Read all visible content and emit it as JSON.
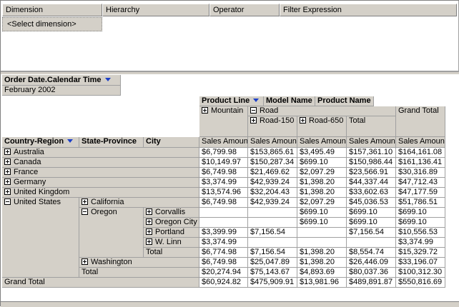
{
  "filter_pane": {
    "columns": [
      "Dimension",
      "Hierarchy",
      "Operator",
      "Filter Expression"
    ],
    "placeholder": "<Select dimension>"
  },
  "pivot": {
    "filter_field": "Order Date.Calendar Time",
    "filter_value": "February 2002",
    "column_fields": [
      "Product Line",
      "Model Name",
      "Product Name"
    ],
    "row_fields": [
      "Country-Region",
      "State-Province",
      "City"
    ],
    "column_headers": {
      "lines": [
        {
          "name": "Mountain"
        },
        {
          "name": "Road",
          "models": [
            "Road-150",
            "Road-650"
          ],
          "total": "Total"
        }
      ],
      "grand_total": "Grand Total"
    },
    "measure": "Sales Amount",
    "rows": [
      {
        "name": "Australia",
        "values": [
          "$6,799.98",
          "$153,865.61",
          "$3,495.49",
          "$157,361.10",
          "$164,161.08"
        ]
      },
      {
        "name": "Canada",
        "values": [
          "$10,149.97",
          "$150,287.34",
          "$699.10",
          "$150,986.44",
          "$161,136.41"
        ]
      },
      {
        "name": "France",
        "values": [
          "$6,749.98",
          "$21,469.62",
          "$2,097.29",
          "$23,566.91",
          "$30,316.89"
        ]
      },
      {
        "name": "Germany",
        "values": [
          "$3,374.99",
          "$42,939.24",
          "$1,398.20",
          "$44,337.44",
          "$47,712.43"
        ]
      },
      {
        "name": "United Kingdom",
        "values": [
          "$13,574.96",
          "$32,204.43",
          "$1,398.20",
          "$33,602.63",
          "$47,177.59"
        ]
      },
      {
        "name": "United States",
        "states": [
          {
            "name": "California",
            "values": [
              "$6,749.98",
              "$42,939.24",
              "$2,097.29",
              "$45,036.53",
              "$51,786.51"
            ]
          },
          {
            "name": "Oregon",
            "cities": [
              {
                "name": "Corvallis",
                "values": [
                  null,
                  null,
                  "$699.10",
                  "$699.10",
                  "$699.10"
                ]
              },
              {
                "name": "Oregon City",
                "values": [
                  null,
                  null,
                  "$699.10",
                  "$699.10",
                  "$699.10"
                ]
              },
              {
                "name": "Portland",
                "values": [
                  "$3,399.99",
                  "$7,156.54",
                  null,
                  "$7,156.54",
                  "$10,556.53"
                ]
              },
              {
                "name": "W. Linn",
                "values": [
                  "$3,374.99",
                  null,
                  null,
                  null,
                  "$3,374.99"
                ]
              }
            ],
            "total_label": "Total",
            "total_values": [
              "$6,774.98",
              "$7,156.54",
              "$1,398.20",
              "$8,554.74",
              "$15,329.72"
            ]
          },
          {
            "name": "Washington",
            "values": [
              "$6,749.98",
              "$25,047.89",
              "$1,398.20",
              "$26,446.09",
              "$33,196.07"
            ]
          }
        ],
        "total_label": "Total",
        "total_values": [
          "$20,274.94",
          "$75,143.67",
          "$4,893.69",
          "$80,037.36",
          "$100,312.30"
        ]
      }
    ],
    "grand_total": {
      "label": "Grand Total",
      "values": [
        "$60,924.82",
        "$475,909.91",
        "$13,981.96",
        "$489,891.87",
        "$550,816.69"
      ]
    }
  }
}
